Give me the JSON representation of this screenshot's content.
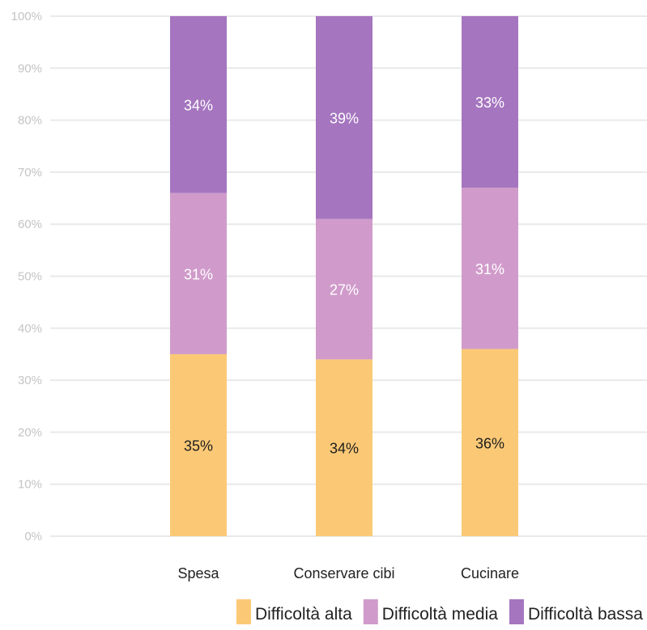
{
  "chart_data": {
    "type": "bar",
    "stacked": true,
    "percent_stacked": true,
    "categories": [
      "Spesa",
      "Conservare cibi",
      "Cucinare"
    ],
    "series": [
      {
        "name": "Difficoltà alta",
        "values": [
          35,
          34,
          36
        ],
        "labels": [
          "35%",
          "34%",
          "36%"
        ],
        "color": "#fbc976",
        "label_color": "#1e1e1e"
      },
      {
        "name": "Difficoltà media",
        "values": [
          31,
          27,
          31
        ],
        "labels": [
          "31%",
          "27%",
          "31%"
        ],
        "color": "#d09bcb",
        "label_color": "#ffffff"
      },
      {
        "name": "Difficoltà bassa",
        "values": [
          34,
          39,
          33
        ],
        "labels": [
          "34%",
          "39%",
          "33%"
        ],
        "color": "#a575bf",
        "label_color": "#ffffff"
      }
    ],
    "ylim": [
      0,
      100
    ],
    "yticks": [
      "0%",
      "10%",
      "20%",
      "30%",
      "40%",
      "50%",
      "60%",
      "70%",
      "80%",
      "90%",
      "100%"
    ],
    "grid": true,
    "legend_position": "bottom-right",
    "title": "",
    "xlabel": "",
    "ylabel": ""
  }
}
